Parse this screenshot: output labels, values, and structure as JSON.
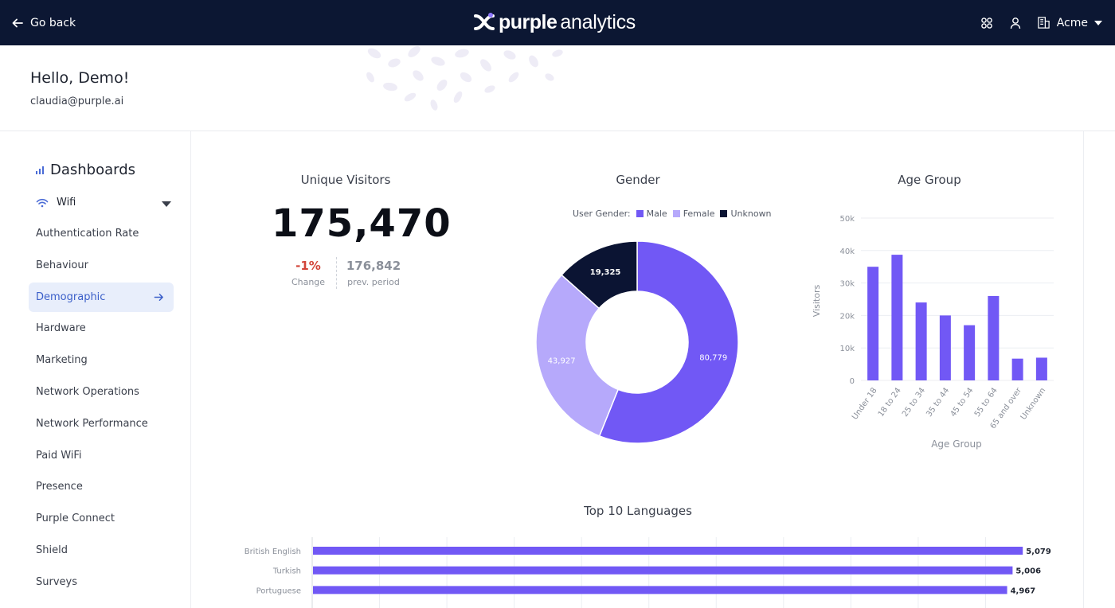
{
  "header": {
    "go_back": "Go back",
    "logo_bold": "purple",
    "logo_light": "analytics",
    "org": "Acme",
    "icons": [
      "apps-icon",
      "user-icon",
      "building-icon"
    ]
  },
  "greeting": {
    "hello": "Hello, Demo!",
    "email": "claudia@purple.ai"
  },
  "sidebar": {
    "title": "Dashboards",
    "section": "Wifi",
    "items": [
      {
        "label": "Authentication Rate"
      },
      {
        "label": "Behaviour"
      },
      {
        "label": "Demographic",
        "active": true
      },
      {
        "label": "Hardware"
      },
      {
        "label": "Marketing"
      },
      {
        "label": "Network Operations"
      },
      {
        "label": "Network Performance"
      },
      {
        "label": "Paid WiFi"
      },
      {
        "label": "Presence"
      },
      {
        "label": "Purple Connect"
      },
      {
        "label": "Shield"
      },
      {
        "label": "Surveys"
      }
    ]
  },
  "unique_visitors": {
    "title": "Unique Visitors",
    "value": "175,470",
    "change": "-1%",
    "change_label": "Change",
    "prev": "176,842",
    "prev_label": "prev. period"
  },
  "colors": {
    "accent": "#7158f5",
    "female": "#b6a9fb",
    "unknown": "#0b1433",
    "header": "#0c1733",
    "negative": "#d2453a"
  },
  "chart_data": [
    {
      "type": "pie",
      "title": "Gender",
      "legend_title": "User Gender:",
      "legend_position": "top",
      "categories": [
        "Male",
        "Female",
        "Unknown"
      ],
      "values": [
        80779,
        43927,
        19325
      ],
      "labels": [
        "80,779",
        "43,927",
        "19,325"
      ]
    },
    {
      "type": "bar",
      "title": "Age Group",
      "xlabel": "Age Group",
      "ylabel": "Visitors",
      "categories": [
        "Under 18",
        "18 to 24",
        "25 to 34",
        "35 to 44",
        "45 to 54",
        "55 to 64",
        "65 and over",
        "Unknown"
      ],
      "values": [
        35000,
        38700,
        24000,
        20000,
        17000,
        26000,
        6700,
        7000
      ],
      "ylim": [
        0,
        50000
      ],
      "yticks": [
        "0",
        "10k",
        "20k",
        "30k",
        "40k",
        "50k"
      ],
      "grid": true
    },
    {
      "type": "bar",
      "orientation": "horizontal",
      "title": "Top 10 Languages",
      "categories": [
        "British English",
        "Turkish",
        "Portuguese"
      ],
      "values": [
        5079,
        5006,
        4967
      ],
      "labels": [
        "5,079",
        "5,006",
        "4,967"
      ],
      "xlim": [
        0,
        5300
      ],
      "grid": true
    }
  ]
}
